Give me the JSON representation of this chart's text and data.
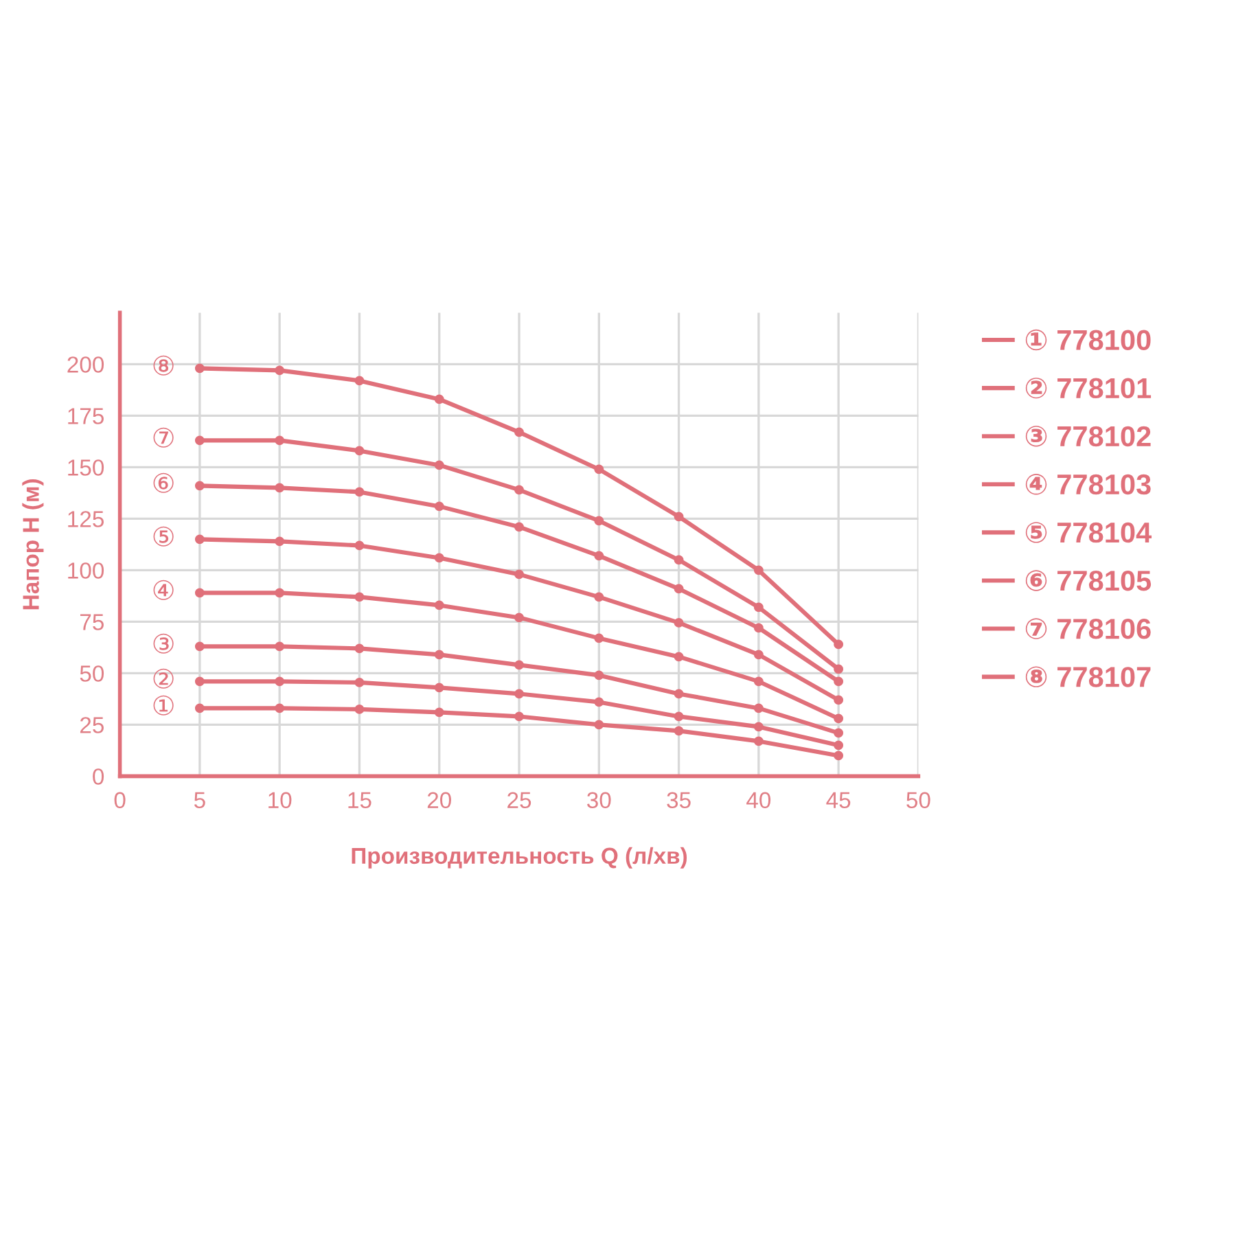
{
  "chart_data": {
    "type": "line",
    "xlabel": "Производительность Q (л/хв)",
    "ylabel": "Напор H (м)",
    "x": [
      5,
      10,
      15,
      20,
      25,
      30,
      35,
      40,
      45
    ],
    "xlim": [
      0,
      50
    ],
    "xticks": [
      0,
      5,
      10,
      15,
      20,
      25,
      30,
      35,
      40,
      45,
      50
    ],
    "ylim": [
      0,
      225
    ],
    "yticks": [
      0,
      25,
      50,
      75,
      100,
      125,
      150,
      175,
      200
    ],
    "grid": true,
    "marker": "circle",
    "line_style": "solid",
    "legend": "right",
    "series": [
      {
        "name": "① 778100",
        "color": "#e0707a",
        "values": [
          33,
          33,
          32.5,
          31,
          29,
          25,
          22,
          17,
          10
        ]
      },
      {
        "name": "② 778101",
        "color": "#e0707a",
        "values": [
          46,
          46,
          45.5,
          43,
          40,
          36,
          29,
          24,
          15
        ]
      },
      {
        "name": "③ 778102",
        "color": "#e0707a",
        "values": [
          63,
          63,
          62,
          59,
          54,
          49,
          40,
          33,
          21
        ]
      },
      {
        "name": "④ 778103",
        "color": "#e0707a",
        "values": [
          89,
          89,
          87,
          83,
          77,
          67,
          58,
          46,
          28
        ]
      },
      {
        "name": "⑤ 778104",
        "color": "#e0707a",
        "values": [
          115,
          114,
          112,
          106,
          98,
          87,
          74.5,
          59,
          37
        ]
      },
      {
        "name": "⑥ 778105",
        "color": "#e0707a",
        "values": [
          141,
          140,
          138,
          131,
          121,
          107,
          91,
          72,
          46
        ]
      },
      {
        "name": "⑦ 778106",
        "color": "#e0707a",
        "values": [
          163,
          163,
          158,
          151,
          139,
          124,
          105,
          82,
          52
        ]
      },
      {
        "name": "⑧ 778107",
        "color": "#e0707a",
        "values": [
          198,
          197,
          192,
          183,
          167,
          149,
          126,
          100,
          64
        ]
      }
    ],
    "annotations": [
      "①",
      "②",
      "③",
      "④",
      "⑤",
      "⑥",
      "⑦",
      "⑧"
    ]
  }
}
